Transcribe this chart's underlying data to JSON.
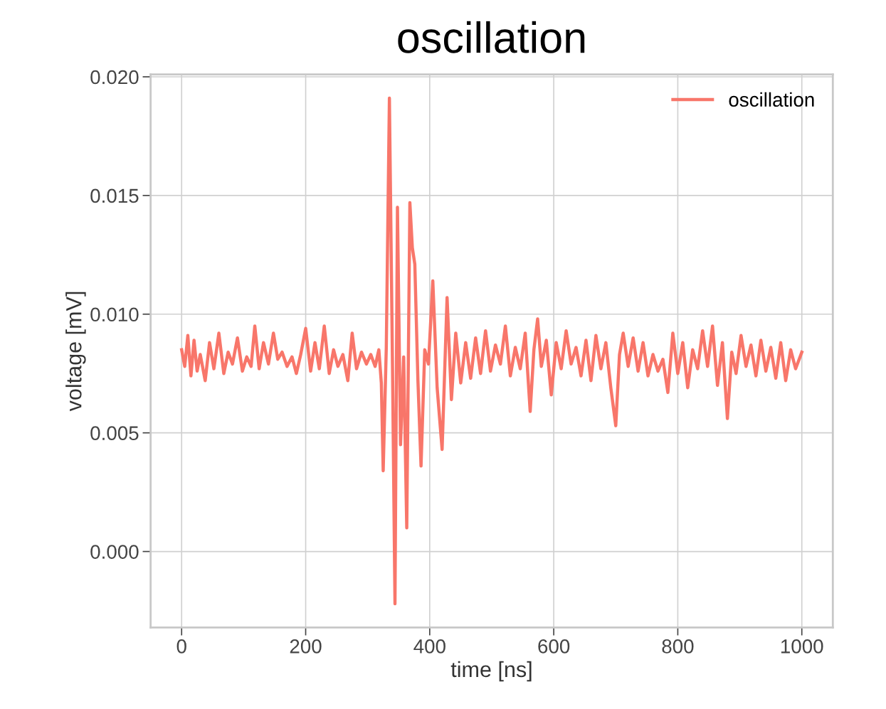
{
  "chart_data": {
    "type": "line",
    "title": "oscillation",
    "xlabel": "time [ns]",
    "ylabel": "voltage [mV]",
    "xlim": [
      -50,
      1050
    ],
    "ylim": [
      -0.0032,
      0.0201
    ],
    "xticks": [
      0,
      200,
      400,
      600,
      800,
      1000
    ],
    "yticks": [
      {
        "value": 0.0,
        "label": "0.000"
      },
      {
        "value": 0.005,
        "label": "0.005"
      },
      {
        "value": 0.01,
        "label": "0.010"
      },
      {
        "value": 0.015,
        "label": "0.015"
      },
      {
        "value": 0.02,
        "label": "0.020"
      }
    ],
    "grid": true,
    "legend": "top right",
    "line_style": "solid",
    "marker": "none",
    "series": [
      {
        "name": "oscillation",
        "color": "#f8766a",
        "x": [
          0,
          5,
          10,
          15,
          20,
          25,
          30,
          38,
          45,
          52,
          60,
          68,
          75,
          82,
          90,
          98,
          105,
          112,
          118,
          125,
          132,
          140,
          148,
          155,
          162,
          170,
          178,
          185,
          192,
          200,
          208,
          215,
          222,
          230,
          238,
          245,
          252,
          260,
          268,
          275,
          282,
          290,
          298,
          305,
          312,
          318,
          322,
          325,
          330,
          335,
          340,
          344,
          348,
          353,
          358,
          363,
          368,
          372,
          376,
          381,
          386,
          392,
          398,
          405,
          412,
          420,
          428,
          435,
          442,
          450,
          458,
          466,
          474,
          482,
          490,
          498,
          506,
          514,
          522,
          530,
          538,
          546,
          554,
          562,
          568,
          574,
          580,
          588,
          596,
          604,
          612,
          620,
          628,
          636,
          644,
          652,
          660,
          668,
          676,
          684,
          692,
          700,
          706,
          712,
          720,
          728,
          736,
          744,
          752,
          760,
          768,
          776,
          784,
          792,
          800,
          808,
          816,
          824,
          832,
          840,
          848,
          856,
          864,
          872,
          880,
          887,
          894,
          902,
          910,
          918,
          926,
          934,
          942,
          950,
          958,
          966,
          974,
          982,
          990,
          1000
        ],
        "values": [
          0.0085,
          0.0078,
          0.0091,
          0.0074,
          0.0089,
          0.0076,
          0.0083,
          0.0072,
          0.0088,
          0.0077,
          0.0092,
          0.0075,
          0.0084,
          0.0079,
          0.009,
          0.0076,
          0.0082,
          0.0078,
          0.0095,
          0.0077,
          0.0088,
          0.0079,
          0.0092,
          0.0081,
          0.0084,
          0.0078,
          0.0082,
          0.0075,
          0.0083,
          0.0094,
          0.0076,
          0.0088,
          0.0077,
          0.0095,
          0.0075,
          0.0085,
          0.0078,
          0.0083,
          0.0072,
          0.0092,
          0.0077,
          0.0084,
          0.0079,
          0.0083,
          0.0078,
          0.0085,
          0.0071,
          0.0034,
          0.0086,
          0.0191,
          0.0078,
          -0.0022,
          0.0145,
          0.0045,
          0.0082,
          0.001,
          0.0147,
          0.0128,
          0.0121,
          0.0072,
          0.0036,
          0.0085,
          0.0079,
          0.0114,
          0.0069,
          0.0043,
          0.0107,
          0.0064,
          0.0092,
          0.0071,
          0.0088,
          0.0073,
          0.009,
          0.0075,
          0.0093,
          0.0076,
          0.0087,
          0.0079,
          0.0095,
          0.0074,
          0.0086,
          0.0077,
          0.0092,
          0.0059,
          0.0085,
          0.0098,
          0.0078,
          0.0089,
          0.0066,
          0.0088,
          0.0077,
          0.0093,
          0.0079,
          0.0086,
          0.0074,
          0.0089,
          0.0072,
          0.0091,
          0.0077,
          0.0088,
          0.0069,
          0.0053,
          0.0083,
          0.0092,
          0.0078,
          0.009,
          0.0076,
          0.0088,
          0.0074,
          0.0083,
          0.0076,
          0.0081,
          0.0067,
          0.0092,
          0.0075,
          0.0088,
          0.0069,
          0.0085,
          0.0077,
          0.0093,
          0.0078,
          0.0095,
          0.007,
          0.0088,
          0.0056,
          0.0084,
          0.0075,
          0.0091,
          0.0078,
          0.0087,
          0.0074,
          0.0089,
          0.0076,
          0.0086,
          0.0073,
          0.0088,
          0.0072,
          0.0085,
          0.0077,
          0.0084
        ]
      }
    ]
  }
}
